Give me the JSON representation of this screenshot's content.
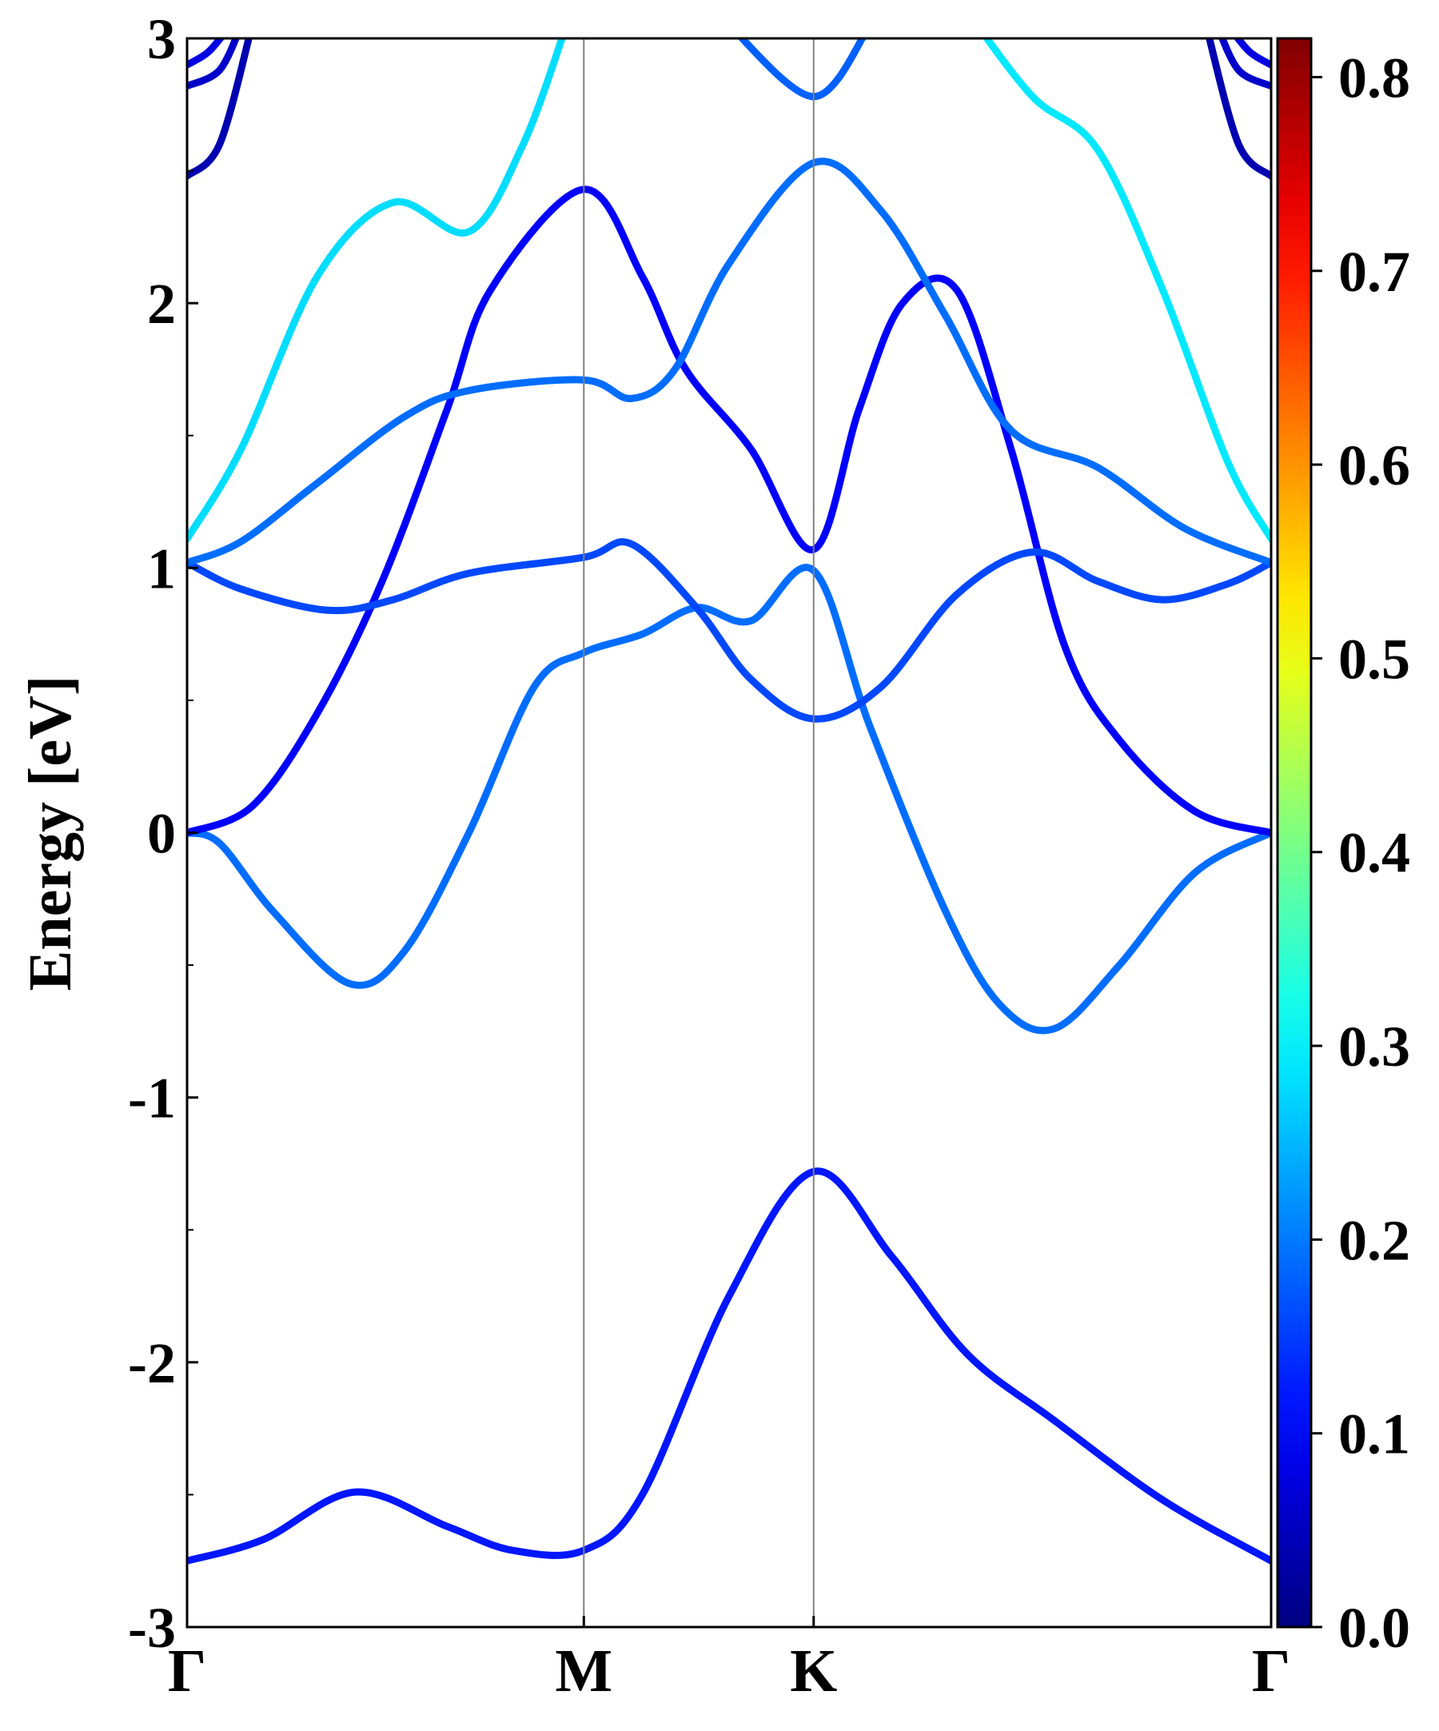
{
  "chart_data": {
    "type": "line",
    "title": "",
    "xlabel": "",
    "ylabel": "Energy [eV]",
    "ylim": [
      -3,
      3
    ],
    "yticks": [
      {
        "value": 3,
        "label": "3"
      },
      {
        "value": 2,
        "label": "2"
      },
      {
        "value": 1,
        "label": "1"
      },
      {
        "value": 0,
        "label": "0"
      },
      {
        "value": -1,
        "label": "-1"
      },
      {
        "value": -2,
        "label": "-2"
      },
      {
        "value": -3,
        "label": "-3"
      }
    ],
    "xlim": [
      0,
      1
    ],
    "high_symmetry_points": [
      {
        "label": "Γ",
        "x": 0.0
      },
      {
        "label": "M",
        "x": 0.366
      },
      {
        "label": "K",
        "x": 0.578
      },
      {
        "label": "Γ",
        "x": 1.0
      }
    ],
    "grid": false,
    "colorbar": {
      "colormap": "jet",
      "range": [
        0.0,
        0.82
      ],
      "ticks": [
        {
          "value": 0.0,
          "label": "0.0"
        },
        {
          "value": 0.1,
          "label": "0.1"
        },
        {
          "value": 0.2,
          "label": "0.2"
        },
        {
          "value": 0.3,
          "label": "0.3"
        },
        {
          "value": 0.4,
          "label": "0.4"
        },
        {
          "value": 0.5,
          "label": "0.5"
        },
        {
          "value": 0.6,
          "label": "0.6"
        },
        {
          "value": 0.7,
          "label": "0.7"
        },
        {
          "value": 0.8,
          "label": "0.8"
        }
      ]
    },
    "series": [
      {
        "points": [
          [
            0,
            -2.75
          ],
          [
            0.07,
            -2.67
          ],
          [
            0.155,
            -2.49
          ],
          [
            0.24,
            -2.62
          ],
          [
            0.3,
            -2.71
          ],
          [
            0.366,
            -2.71
          ],
          [
            0.42,
            -2.5
          ],
          [
            0.5,
            -1.75
          ],
          [
            0.578,
            -1.28
          ],
          [
            0.65,
            -1.6
          ],
          [
            0.72,
            -1.97
          ],
          [
            0.8,
            -2.22
          ],
          [
            0.9,
            -2.52
          ],
          [
            1,
            -2.75
          ]
        ],
        "weight": 0.12
      },
      {
        "points": [
          [
            0,
            0
          ],
          [
            0.03,
            -0.04
          ],
          [
            0.08,
            -0.3
          ],
          [
            0.15,
            -0.57
          ],
          [
            0.2,
            -0.45
          ],
          [
            0.26,
            0
          ],
          [
            0.32,
            0.55
          ],
          [
            0.366,
            0.68
          ],
          [
            0.42,
            0.75
          ],
          [
            0.47,
            0.85
          ],
          [
            0.52,
            0.8
          ],
          [
            0.578,
            0.99
          ],
          [
            0.63,
            0.4
          ],
          [
            0.7,
            -0.3
          ],
          [
            0.75,
            -0.65
          ],
          [
            0.8,
            -0.74
          ],
          [
            0.86,
            -0.5
          ],
          [
            0.93,
            -0.15
          ],
          [
            1,
            0
          ]
        ],
        "weight": 0.19
      },
      {
        "points": [
          [
            0,
            0
          ],
          [
            0.06,
            0.1
          ],
          [
            0.12,
            0.45
          ],
          [
            0.18,
            0.95
          ],
          [
            0.24,
            1.6
          ],
          [
            0.28,
            2.05
          ],
          [
            0.366,
            2.43
          ],
          [
            0.42,
            2.1
          ],
          [
            0.46,
            1.75
          ],
          [
            0.52,
            1.45
          ],
          [
            0.578,
            1.07
          ],
          [
            0.62,
            1.6
          ],
          [
            0.66,
            2.0
          ],
          [
            0.71,
            2.05
          ],
          [
            0.76,
            1.45
          ],
          [
            0.81,
            0.7
          ],
          [
            0.86,
            0.35
          ],
          [
            0.93,
            0.08
          ],
          [
            1,
            0
          ]
        ],
        "weight": 0.1
      },
      {
        "points": [
          [
            0,
            1.02
          ],
          [
            0.05,
            0.92
          ],
          [
            0.13,
            0.84
          ],
          [
            0.19,
            0.88
          ],
          [
            0.26,
            0.98
          ],
          [
            0.366,
            1.04
          ],
          [
            0.41,
            1.09
          ],
          [
            0.47,
            0.85
          ],
          [
            0.52,
            0.58
          ],
          [
            0.578,
            0.43
          ],
          [
            0.64,
            0.55
          ],
          [
            0.71,
            0.9
          ],
          [
            0.78,
            1.06
          ],
          [
            0.84,
            0.95
          ],
          [
            0.9,
            0.88
          ],
          [
            0.96,
            0.94
          ],
          [
            1,
            1.02
          ]
        ],
        "weight": 0.16
      },
      {
        "points": [
          [
            0,
            1.02
          ],
          [
            0.05,
            1.1
          ],
          [
            0.12,
            1.32
          ],
          [
            0.2,
            1.57
          ],
          [
            0.26,
            1.67
          ],
          [
            0.366,
            1.71
          ],
          [
            0.41,
            1.64
          ],
          [
            0.45,
            1.75
          ],
          [
            0.5,
            2.15
          ],
          [
            0.578,
            2.53
          ],
          [
            0.64,
            2.35
          ],
          [
            0.7,
            1.95
          ],
          [
            0.76,
            1.52
          ],
          [
            0.84,
            1.38
          ],
          [
            0.92,
            1.15
          ],
          [
            1,
            1.02
          ]
        ],
        "weight": 0.19
      },
      {
        "points": [
          [
            0,
            1.11
          ],
          [
            0.05,
            1.45
          ],
          [
            0.12,
            2.1
          ],
          [
            0.19,
            2.38
          ],
          [
            0.26,
            2.27
          ],
          [
            0.31,
            2.6
          ],
          [
            0.35,
            3.05
          ]
        ],
        "weight": 0.28
      },
      {
        "points": [
          [
            0.72,
            3.1
          ],
          [
            0.78,
            2.78
          ],
          [
            0.84,
            2.58
          ],
          [
            0.9,
            2.05
          ],
          [
            0.96,
            1.4
          ],
          [
            1,
            1.11
          ]
        ],
        "weight": 0.29
      },
      {
        "points": [
          [
            0.5,
            3.05
          ],
          [
            0.578,
            2.78
          ],
          [
            0.63,
            3.05
          ]
        ],
        "weight": 0.18
      },
      {
        "points": [
          [
            0,
            2.48
          ],
          [
            0.03,
            2.6
          ],
          [
            0.06,
            3.05
          ]
        ],
        "weight": 0.04
      },
      {
        "points": [
          [
            0,
            2.82
          ],
          [
            0.03,
            2.88
          ],
          [
            0.05,
            3.05
          ]
        ],
        "weight": 0.06
      },
      {
        "points": [
          [
            0,
            2.9
          ],
          [
            0.02,
            2.95
          ],
          [
            0.04,
            3.05
          ]
        ],
        "weight": 0.08
      },
      {
        "points": [
          [
            1,
            2.48
          ],
          [
            0.97,
            2.6
          ],
          [
            0.94,
            3.05
          ]
        ],
        "weight": 0.04
      },
      {
        "points": [
          [
            1,
            2.82
          ],
          [
            0.97,
            2.88
          ],
          [
            0.95,
            3.05
          ]
        ],
        "weight": 0.06
      },
      {
        "points": [
          [
            1,
            2.9
          ],
          [
            0.98,
            2.95
          ],
          [
            0.96,
            3.05
          ]
        ],
        "weight": 0.08
      }
    ]
  }
}
